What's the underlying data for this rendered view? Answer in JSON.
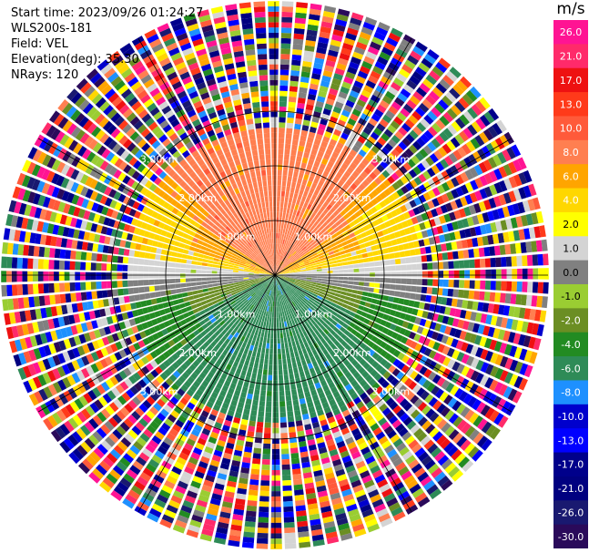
{
  "header": {
    "start_time": "Start time: 2023/09/26 01:24:27",
    "instrument": "WLS200s-181",
    "field": "Field: VEL",
    "elevation": "Elevation(deg): 35.30",
    "nrays": "NRays: 120"
  },
  "chart_data": {
    "type": "heatmap",
    "projection": "polar PPI scan",
    "field": "VEL",
    "nrays": 120,
    "elevation_deg": 35.3,
    "range_rings_km": [
      1.0,
      2.0,
      3.0
    ],
    "range_ring_labels": [
      "1.00km",
      "2.00km",
      "3.00km"
    ],
    "ring_label_bearings_deg": [
      45,
      135,
      225,
      315
    ],
    "max_range_km": 5.0,
    "clean_signal_range_km": 2.7,
    "sector_lines_bearing_deg": [
      0,
      30,
      60,
      90,
      120,
      150,
      180,
      210,
      240,
      270,
      300,
      330
    ],
    "velocity_pattern": [
      {
        "sector": "north (bearing 300-60)",
        "velocity_ms": 8.0
      },
      {
        "sector": "north-west / north-east flanks",
        "velocity_ms": 4.0
      },
      {
        "sector": "east-west band",
        "velocity_ms": 1.0
      },
      {
        "sector": "near horizontal axis",
        "velocity_ms": 0.0
      },
      {
        "sector": "south-west / south-east flanks",
        "velocity_ms": -2.0
      },
      {
        "sector": "south (bearing 120-240)",
        "velocity_ms": -6.0
      }
    ],
    "colorbar": {
      "unit": "m/s",
      "tick_labels": [
        "26.0",
        "21.0",
        "17.0",
        "13.0",
        "10.0",
        "8.0",
        "6.0",
        "4.0",
        "2.0",
        "1.0",
        "0.0",
        "-1.0",
        "-2.0",
        "-4.0",
        "-6.0",
        "-8.0",
        "-10.0",
        "-13.0",
        "-17.0",
        "-21.0",
        "-26.0",
        "-30.0"
      ],
      "colors": [
        "#ff1493",
        "#ff2a6a",
        "#ee1111",
        "#ff3a1a",
        "#ff5a3a",
        "#ff7f50",
        "#ffa500",
        "#ffd700",
        "#ffff00",
        "#d4d4d4",
        "#808080",
        "#9acd32",
        "#6b8e23",
        "#228b22",
        "#2e8b57",
        "#1e90ff",
        "#0000cd",
        "#0000ff",
        "#00008b",
        "#000080",
        "#191970",
        "#2a0a5a"
      ]
    }
  }
}
